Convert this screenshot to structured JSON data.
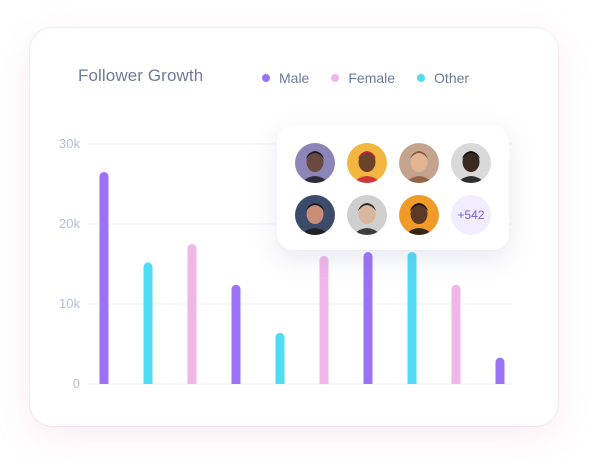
{
  "chart_data": {
    "type": "bar",
    "title": "Follower Growth",
    "series": [
      {
        "name": "Male",
        "color": "#9b72f5"
      },
      {
        "name": "Female",
        "color": "#f0b6e8"
      },
      {
        "name": "Other",
        "color": "#4fdcf4"
      }
    ],
    "bars": [
      {
        "series": "Male",
        "value": 26500
      },
      {
        "series": "Other",
        "value": 15200
      },
      {
        "series": "Female",
        "value": 17500
      },
      {
        "series": "Male",
        "value": 12400
      },
      {
        "series": "Other",
        "value": 6400
      },
      {
        "series": "Female",
        "value": 16000
      },
      {
        "series": "Male",
        "value": 16500
      },
      {
        "series": "Other",
        "value": 16500
      },
      {
        "series": "Female",
        "value": 12400
      },
      {
        "series": "Male",
        "value": 3300
      }
    ],
    "y_ticks": [
      {
        "value": 0,
        "label": "0"
      },
      {
        "value": 10000,
        "label": "10k"
      },
      {
        "value": 20000,
        "label": "20k"
      },
      {
        "value": 30000,
        "label": "30k"
      }
    ],
    "ylim": [
      0,
      30000
    ],
    "grid": true,
    "legend": "top"
  },
  "followers": {
    "avatars": [
      {
        "name": "avatar-1",
        "bg": "#8c86b8",
        "skin": "#6a4a3e",
        "hair": "#1f1a24"
      },
      {
        "name": "avatar-2",
        "bg": "#f3b640",
        "skin": "#6b4328",
        "hair": "#c8203a"
      },
      {
        "name": "avatar-3",
        "bg": "#c5a48f",
        "skin": "#e2b494",
        "hair": "#8a5a3a"
      },
      {
        "name": "avatar-4",
        "bg": "#d9d9d9",
        "skin": "#3b2a22",
        "hair": "#111111"
      },
      {
        "name": "avatar-5",
        "bg": "#3d4b6a",
        "skin": "#c98e78",
        "hair": "#1a1a1a"
      },
      {
        "name": "avatar-6",
        "bg": "#cfcfcf",
        "skin": "#d8b79c",
        "hair": "#232323"
      },
      {
        "name": "avatar-7",
        "bg": "#f09a2a",
        "skin": "#5a3a27",
        "hair": "#111111"
      }
    ],
    "more_label": "+542"
  }
}
